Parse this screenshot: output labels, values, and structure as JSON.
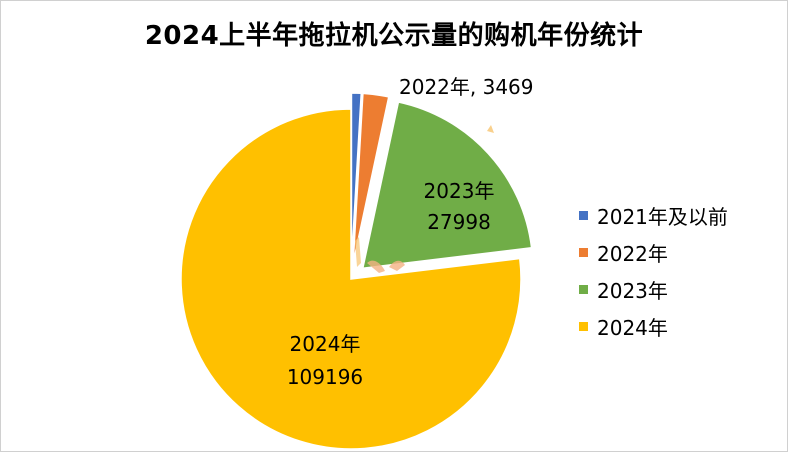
{
  "chart_data": {
    "type": "pie",
    "title": "2024上半年拖拉机公示量的购机年份统计",
    "slices": [
      {
        "name": "2021年及以前",
        "value": 1300,
        "color": "#4472C4",
        "label": ""
      },
      {
        "name": "2022年",
        "value": 3469,
        "color": "#ED7D31",
        "label": "2022年, 3469"
      },
      {
        "name": "2023年",
        "value": 27998,
        "color": "#70AD47",
        "label": "2023年, 27998"
      },
      {
        "name": "2024年",
        "value": 109196,
        "color": "#FFC000",
        "label": "2024年, 109196"
      }
    ],
    "legend_position": "right",
    "exploded": true
  }
}
